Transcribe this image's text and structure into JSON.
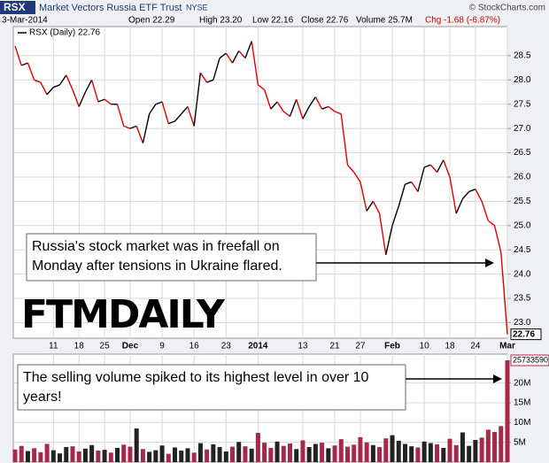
{
  "header": {
    "symbol": "RSX",
    "name": "Market Vectors Russia ETF Trust",
    "exchange": "NYSE",
    "source": "© StockCharts.com",
    "date": "3-Mar-2014",
    "quote": [
      "Open 22.29",
      "High 23.20",
      "Low 22.16",
      "Close 22.76",
      "Volume 25.7M",
      "Chg -1.68 (-6.87%)"
    ]
  },
  "chart_data": [
    {
      "type": "line",
      "legend": "RSX (Daily) 22.76",
      "up_color": "#000000",
      "down_color": "#e00000",
      "grid": true,
      "logo": "FTMDAILY",
      "annotation": [
        "Russia's stock market was in freefall on",
        "Monday after tensions in Ukraine flared."
      ],
      "categories": [
        null,
        null,
        null,
        null,
        null,
        null,
        "11",
        null,
        null,
        null,
        "18",
        null,
        null,
        null,
        "25",
        null,
        null,
        null,
        "Dec",
        null,
        null,
        null,
        null,
        "9",
        null,
        null,
        null,
        null,
        "16",
        null,
        null,
        null,
        null,
        "23",
        null,
        null,
        null,
        null,
        "2014",
        null,
        null,
        null,
        null,
        null,
        null,
        "13",
        null,
        null,
        null,
        null,
        "21",
        null,
        null,
        null,
        "27",
        null,
        null,
        null,
        null,
        "Feb",
        null,
        null,
        null,
        null,
        "10",
        null,
        null,
        null,
        "18",
        null,
        null,
        null,
        "24",
        null,
        null,
        null,
        null,
        "Mar"
      ],
      "values": [
        28.7,
        28.3,
        28.35,
        28.0,
        27.95,
        27.7,
        27.85,
        27.9,
        28.1,
        27.8,
        27.45,
        27.75,
        28.0,
        27.55,
        27.6,
        27.5,
        27.5,
        27.05,
        27.0,
        27.05,
        26.7,
        27.3,
        27.5,
        27.55,
        27.1,
        27.15,
        27.3,
        27.45,
        27.05,
        28.15,
        27.95,
        28.0,
        28.45,
        28.55,
        28.35,
        28.6,
        28.45,
        28.8,
        27.9,
        27.8,
        27.4,
        27.55,
        27.35,
        27.25,
        27.6,
        27.2,
        27.45,
        27.65,
        27.4,
        27.45,
        27.35,
        27.3,
        26.25,
        26.1,
        25.9,
        25.3,
        25.5,
        25.25,
        24.4,
        25.0,
        25.4,
        25.85,
        25.9,
        25.7,
        26.2,
        26.25,
        26.1,
        26.35,
        26.0,
        25.25,
        25.55,
        25.7,
        25.75,
        25.5,
        25.1,
        25.0,
        24.45,
        22.76
      ],
      "ylim": [
        22.68,
        29.1
      ],
      "yticks": [
        {
          "value": 23,
          "label": "23.0"
        },
        23.5,
        {
          "value": 24,
          "label": "24.0"
        },
        24.5,
        {
          "value": 25,
          "label": "25.0"
        },
        25.5,
        {
          "value": 26,
          "label": "26.0"
        },
        26.5,
        {
          "value": 27,
          "label": "27.0"
        },
        27.5,
        {
          "value": 28,
          "label": "28.0"
        },
        28.5
      ]
    },
    {
      "type": "bar",
      "color": "#a8284a",
      "up_color": "#222222",
      "annotation": [
        "The selling volume spiked to its highest level in over 10",
        "years!"
      ],
      "values": [
        3200000,
        4100000,
        2800000,
        3500000,
        2500000,
        4600000,
        3000000,
        2200000,
        3800000,
        4000000,
        2700000,
        3400000,
        4300000,
        2900000,
        3100000,
        2400000,
        3600000,
        4400000,
        3900000,
        8500000,
        3300000,
        2600000,
        3000000,
        4200000,
        2100000,
        3700000,
        2900000,
        3500000,
        2400000,
        4800000,
        3200000,
        4500000,
        3800000,
        2700000,
        3900000,
        5100000,
        4000000,
        3400000,
        7400000,
        4900000,
        3600000,
        5200000,
        4100000,
        4700000,
        3300000,
        5500000,
        3800000,
        4600000,
        4900000,
        3500000,
        4200000,
        5800000,
        3900000,
        4400000,
        6300000,
        5000000,
        4300000,
        3800000,
        6000000,
        6800000,
        5400000,
        4600000,
        4000000,
        3700000,
        5200000,
        4800000,
        4500000,
        3600000,
        5900000,
        4300000,
        7500000,
        4100000,
        5600000,
        6200000,
        8200000,
        7600000,
        9100000,
        25733590
      ],
      "ylim": [
        0,
        27300000
      ],
      "yticks": [
        {
          "value": 5000000,
          "label": "5M"
        },
        {
          "value": 10000000,
          "label": "10M"
        },
        {
          "value": 15000000,
          "label": "15M"
        },
        {
          "value": 20000000,
          "label": "20M"
        }
      ]
    }
  ]
}
